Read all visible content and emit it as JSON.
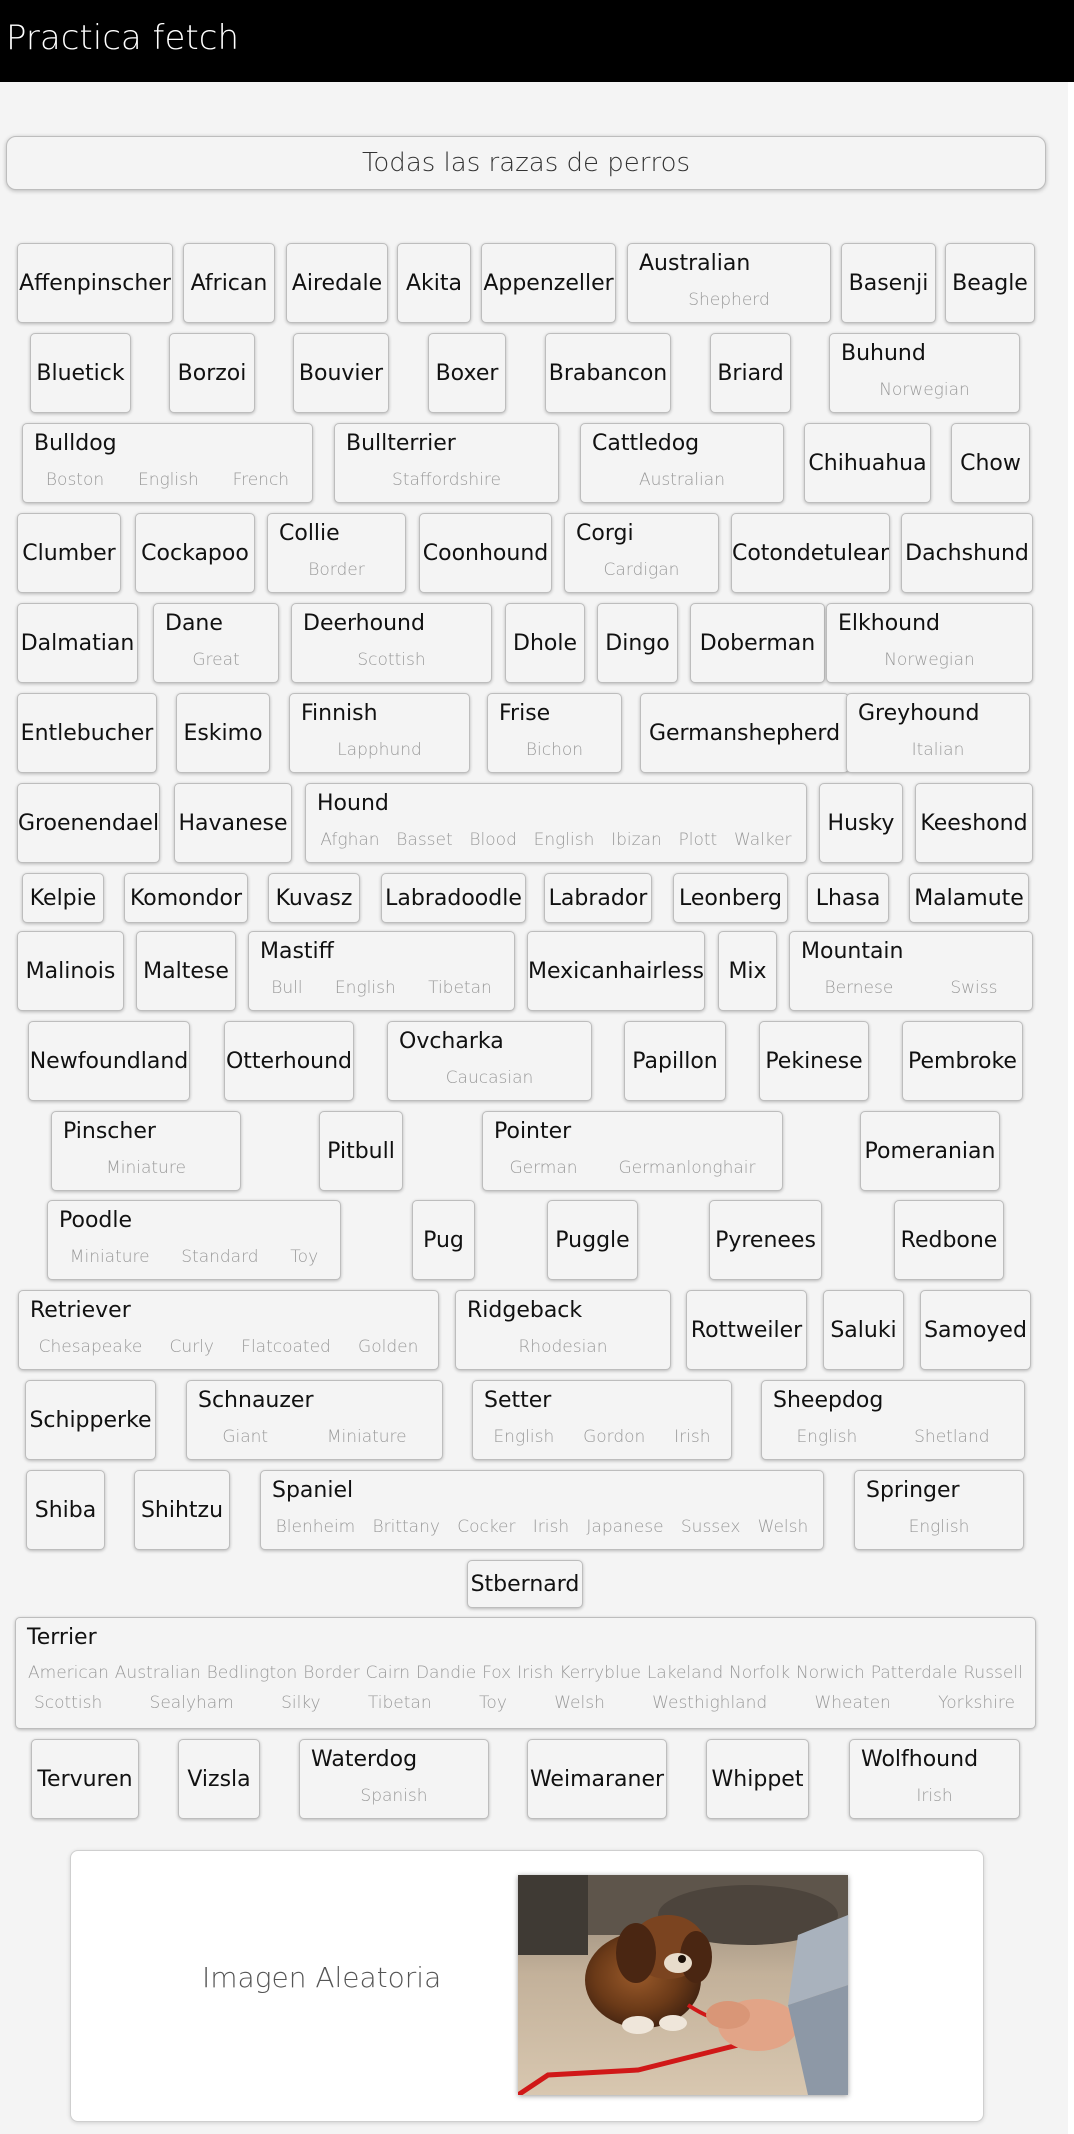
{
  "header": {
    "title": "Practica fetch"
  },
  "all_breeds_button": "Todas las razas de perros",
  "breeds": [
    {
      "name": "Affenpinscher",
      "subs": []
    },
    {
      "name": "African",
      "subs": []
    },
    {
      "name": "Airedale",
      "subs": []
    },
    {
      "name": "Akita",
      "subs": []
    },
    {
      "name": "Appenzeller",
      "subs": []
    },
    {
      "name": "Australian",
      "subs": [
        "Shepherd"
      ]
    },
    {
      "name": "Basenji",
      "subs": []
    },
    {
      "name": "Beagle",
      "subs": []
    },
    {
      "name": "Bluetick",
      "subs": []
    },
    {
      "name": "Borzoi",
      "subs": []
    },
    {
      "name": "Bouvier",
      "subs": []
    },
    {
      "name": "Boxer",
      "subs": []
    },
    {
      "name": "Brabancon",
      "subs": []
    },
    {
      "name": "Briard",
      "subs": []
    },
    {
      "name": "Buhund",
      "subs": [
        "Norwegian"
      ]
    },
    {
      "name": "Bulldog",
      "subs": [
        "Boston",
        "English",
        "French"
      ]
    },
    {
      "name": "Bullterrier",
      "subs": [
        "Staffordshire"
      ]
    },
    {
      "name": "Cattledog",
      "subs": [
        "Australian"
      ]
    },
    {
      "name": "Chihuahua",
      "subs": []
    },
    {
      "name": "Chow",
      "subs": []
    },
    {
      "name": "Clumber",
      "subs": []
    },
    {
      "name": "Cockapoo",
      "subs": []
    },
    {
      "name": "Collie",
      "subs": [
        "Border"
      ]
    },
    {
      "name": "Coonhound",
      "subs": []
    },
    {
      "name": "Corgi",
      "subs": [
        "Cardigan"
      ]
    },
    {
      "name": "Cotondetulear",
      "subs": []
    },
    {
      "name": "Dachshund",
      "subs": []
    },
    {
      "name": "Dalmatian",
      "subs": []
    },
    {
      "name": "Dane",
      "subs": [
        "Great"
      ]
    },
    {
      "name": "Deerhound",
      "subs": [
        "Scottish"
      ]
    },
    {
      "name": "Dhole",
      "subs": []
    },
    {
      "name": "Dingo",
      "subs": []
    },
    {
      "name": "Doberman",
      "subs": []
    },
    {
      "name": "Elkhound",
      "subs": [
        "Norwegian"
      ]
    },
    {
      "name": "Entlebucher",
      "subs": []
    },
    {
      "name": "Eskimo",
      "subs": []
    },
    {
      "name": "Finnish",
      "subs": [
        "Lapphund"
      ]
    },
    {
      "name": "Frise",
      "subs": [
        "Bichon"
      ]
    },
    {
      "name": "Germanshepherd",
      "subs": []
    },
    {
      "name": "Greyhound",
      "subs": [
        "Italian"
      ]
    },
    {
      "name": "Groenendael",
      "subs": []
    },
    {
      "name": "Havanese",
      "subs": []
    },
    {
      "name": "Hound",
      "subs": [
        "Afghan",
        "Basset",
        "Blood",
        "English",
        "Ibizan",
        "Plott",
        "Walker"
      ]
    },
    {
      "name": "Husky",
      "subs": []
    },
    {
      "name": "Keeshond",
      "subs": []
    },
    {
      "name": "Kelpie",
      "subs": []
    },
    {
      "name": "Komondor",
      "subs": []
    },
    {
      "name": "Kuvasz",
      "subs": []
    },
    {
      "name": "Labradoodle",
      "subs": []
    },
    {
      "name": "Labrador",
      "subs": []
    },
    {
      "name": "Leonberg",
      "subs": []
    },
    {
      "name": "Lhasa",
      "subs": []
    },
    {
      "name": "Malamute",
      "subs": []
    },
    {
      "name": "Malinois",
      "subs": []
    },
    {
      "name": "Maltese",
      "subs": []
    },
    {
      "name": "Mastiff",
      "subs": [
        "Bull",
        "English",
        "Tibetan"
      ]
    },
    {
      "name": "Mexicanhairless",
      "subs": []
    },
    {
      "name": "Mix",
      "subs": []
    },
    {
      "name": "Mountain",
      "subs": [
        "Bernese",
        "Swiss"
      ]
    },
    {
      "name": "Newfoundland",
      "subs": []
    },
    {
      "name": "Otterhound",
      "subs": []
    },
    {
      "name": "Ovcharka",
      "subs": [
        "Caucasian"
      ]
    },
    {
      "name": "Papillon",
      "subs": []
    },
    {
      "name": "Pekinese",
      "subs": []
    },
    {
      "name": "Pembroke",
      "subs": []
    },
    {
      "name": "Pinscher",
      "subs": [
        "Miniature"
      ]
    },
    {
      "name": "Pitbull",
      "subs": []
    },
    {
      "name": "Pointer",
      "subs": [
        "German",
        "Germanlonghair"
      ]
    },
    {
      "name": "Pomeranian",
      "subs": []
    },
    {
      "name": "Poodle",
      "subs": [
        "Miniature",
        "Standard",
        "Toy"
      ]
    },
    {
      "name": "Pug",
      "subs": []
    },
    {
      "name": "Puggle",
      "subs": []
    },
    {
      "name": "Pyrenees",
      "subs": []
    },
    {
      "name": "Redbone",
      "subs": []
    },
    {
      "name": "Retriever",
      "subs": [
        "Chesapeake",
        "Curly",
        "Flatcoated",
        "Golden"
      ]
    },
    {
      "name": "Ridgeback",
      "subs": [
        "Rhodesian"
      ]
    },
    {
      "name": "Rottweiler",
      "subs": []
    },
    {
      "name": "Saluki",
      "subs": []
    },
    {
      "name": "Samoyed",
      "subs": []
    },
    {
      "name": "Schipperke",
      "subs": []
    },
    {
      "name": "Schnauzer",
      "subs": [
        "Giant",
        "Miniature"
      ]
    },
    {
      "name": "Setter",
      "subs": [
        "English",
        "Gordon",
        "Irish"
      ]
    },
    {
      "name": "Sheepdog",
      "subs": [
        "English",
        "Shetland"
      ]
    },
    {
      "name": "Shiba",
      "subs": []
    },
    {
      "name": "Shihtzu",
      "subs": []
    },
    {
      "name": "Spaniel",
      "subs": [
        "Blenheim",
        "Brittany",
        "Cocker",
        "Irish",
        "Japanese",
        "Sussex",
        "Welsh"
      ]
    },
    {
      "name": "Springer",
      "subs": [
        "English"
      ]
    },
    {
      "name": "Stbernard",
      "subs": []
    },
    {
      "name": "Terrier",
      "subs": [
        "American",
        "Australian",
        "Bedlington",
        "Border",
        "Cairn",
        "Dandie",
        "Fox",
        "Irish",
        "Kerryblue",
        "Lakeland",
        "Norfolk",
        "Norwich",
        "Patterdale",
        "Russell",
        "Scottish",
        "Sealyham",
        "Silky",
        "Tibetan",
        "Toy",
        "Welsh",
        "Westhighland",
        "Wheaten",
        "Yorkshire"
      ]
    },
    {
      "name": "Tervuren",
      "subs": []
    },
    {
      "name": "Vizsla",
      "subs": []
    },
    {
      "name": "Waterdog",
      "subs": [
        "Spanish"
      ]
    },
    {
      "name": "Weimaraner",
      "subs": []
    },
    {
      "name": "Whippet",
      "subs": []
    },
    {
      "name": "Wolfhound",
      "subs": [
        "Irish"
      ]
    }
  ],
  "random_image": {
    "label": "Imagen Aleatoria"
  }
}
